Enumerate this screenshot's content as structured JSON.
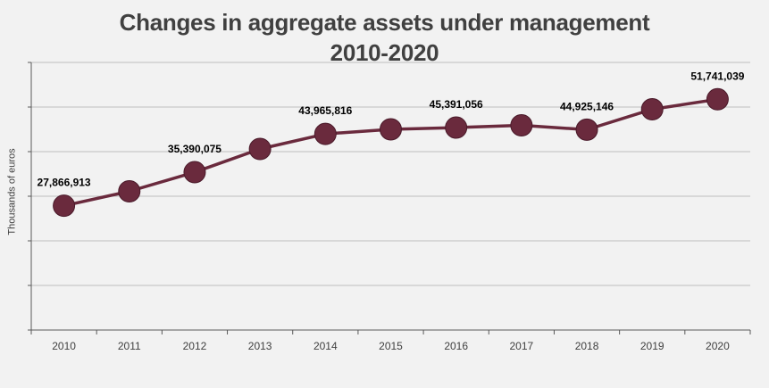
{
  "colors": {
    "background": "#f2f2f2",
    "series": "#6a2a3d",
    "grid": "#bfbfbf",
    "axis": "#595959"
  },
  "chart_data": {
    "type": "line",
    "title": [
      "Changes in aggregate assets under management",
      "2010-2020"
    ],
    "xlabel": "",
    "ylabel": "Thousands of euros",
    "categories": [
      "2010",
      "2011",
      "2012",
      "2013",
      "2014",
      "2015",
      "2016",
      "2017",
      "2018",
      "2019",
      "2020"
    ],
    "series": [
      {
        "values": [
          27866913,
          31100000,
          35390075,
          40600000,
          43965816,
          45000000,
          45391056,
          45900000,
          44925146,
          49500000,
          51741039
        ]
      }
    ],
    "data_labels": [
      {
        "index": 0,
        "text": "27,866,913"
      },
      {
        "index": 2,
        "text": "35,390,075"
      },
      {
        "index": 4,
        "text": "43,965,816"
      },
      {
        "index": 6,
        "text": "45,391,056"
      },
      {
        "index": 8,
        "text": "44,925,146"
      },
      {
        "index": 10,
        "text": "51,741,039"
      }
    ],
    "ylim": [
      0,
      60000000
    ],
    "grid": true,
    "legend": "none"
  }
}
